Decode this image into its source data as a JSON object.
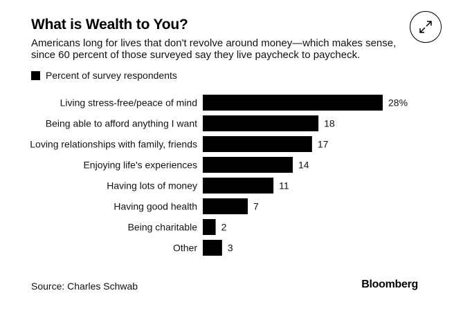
{
  "title": "What is Wealth to You?",
  "subtitle": "Americans long for lives that don't revolve around money—which makes sense, since 60 percent of those surveyed say they live paycheck to paycheck.",
  "legend_label": "Percent of survey respondents",
  "source": "Source: Charles Schwab",
  "logo": "Bloomberg",
  "expand_icon": "expand-icon",
  "colors": {
    "bar": "#000000",
    "background": "#ffffff"
  },
  "chart_data": {
    "type": "bar",
    "orientation": "horizontal",
    "categories": [
      "Living stress-free/peace of mind",
      "Being able to afford anything I want",
      "Loving relationships with family, friends",
      "Enjoying life's experiences",
      "Having lots of money",
      "Having good health",
      "Being charitable",
      "Other"
    ],
    "values": [
      28,
      18,
      17,
      14,
      11,
      7,
      2,
      3
    ],
    "value_labels": [
      "28%",
      "18",
      "17",
      "14",
      "11",
      "7",
      "2",
      "3"
    ],
    "series": [
      {
        "name": "Percent of survey respondents",
        "values": [
          28,
          18,
          17,
          14,
          11,
          7,
          2,
          3
        ]
      }
    ],
    "title": "What is Wealth to You?",
    "xlabel": "",
    "ylabel": "",
    "xlim": [
      0,
      28
    ],
    "grid": false,
    "legend": "top-left"
  }
}
